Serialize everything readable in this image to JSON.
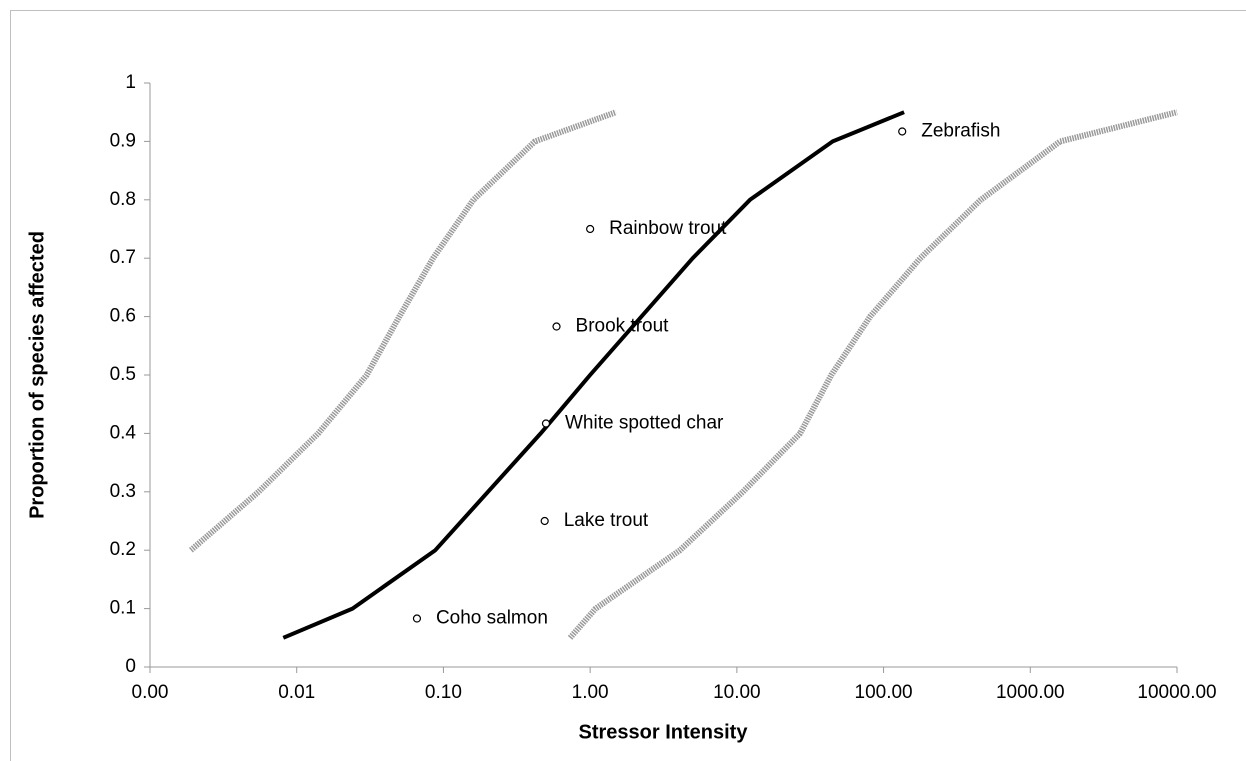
{
  "chart_data": {
    "type": "line",
    "x_label": "Stressor Intensity",
    "y_label": "Proportion of species affected",
    "xscale": "log",
    "xlim": [
      0.001,
      10000
    ],
    "xticks": [
      {
        "value": 0.001,
        "label": "0.00"
      },
      {
        "value": 0.01,
        "label": "0.01"
      },
      {
        "value": 0.1,
        "label": "0.10"
      },
      {
        "value": 1,
        "label": "1.00"
      },
      {
        "value": 10,
        "label": "10.00"
      },
      {
        "value": 100,
        "label": "100.00"
      },
      {
        "value": 1000,
        "label": "1000.00"
      },
      {
        "value": 10000,
        "label": "10000.00"
      }
    ],
    "ylim": [
      0,
      1
    ],
    "yticks": [
      0,
      0.1,
      0.2,
      0.3,
      0.4,
      0.5,
      0.6,
      0.7,
      0.8,
      0.9,
      1
    ],
    "series": [
      {
        "color": "#000000",
        "style": "solid",
        "x": [
          0.0081,
          0.024,
          0.088,
          0.46,
          1.0,
          5.0,
          12.3,
          45,
          138
        ],
        "values": [
          0.05,
          0.1,
          0.2,
          0.4,
          0.5,
          0.7,
          0.8,
          0.9,
          0.95
        ]
      },
      {
        "color": "#9a9a9a",
        "style": "dotted",
        "x": [
          0.0019,
          0.0055,
          0.014,
          0.03,
          0.05,
          0.085,
          0.16,
          0.42,
          1.5
        ],
        "values": [
          0.2,
          0.3,
          0.4,
          0.5,
          0.6,
          0.7,
          0.8,
          0.9,
          0.95
        ]
      },
      {
        "color": "#9a9a9a",
        "style": "dotted",
        "x": [
          0.73,
          1.09,
          4.1,
          11,
          27,
          44,
          81,
          178,
          460,
          1600,
          10000
        ],
        "values": [
          0.05,
          0.1,
          0.2,
          0.3,
          0.4,
          0.5,
          0.6,
          0.7,
          0.8,
          0.9,
          0.95
        ]
      }
    ],
    "points": {
      "labels": [
        "Zebrafish",
        "Rainbow trout",
        "Brook trout",
        "White spotted char",
        "Lake trout",
        "Coho salmon"
      ],
      "x": [
        134,
        1.0,
        0.59,
        0.5,
        0.49,
        0.066
      ],
      "values": [
        0.917,
        0.75,
        0.583,
        0.417,
        0.25,
        0.083
      ]
    }
  }
}
